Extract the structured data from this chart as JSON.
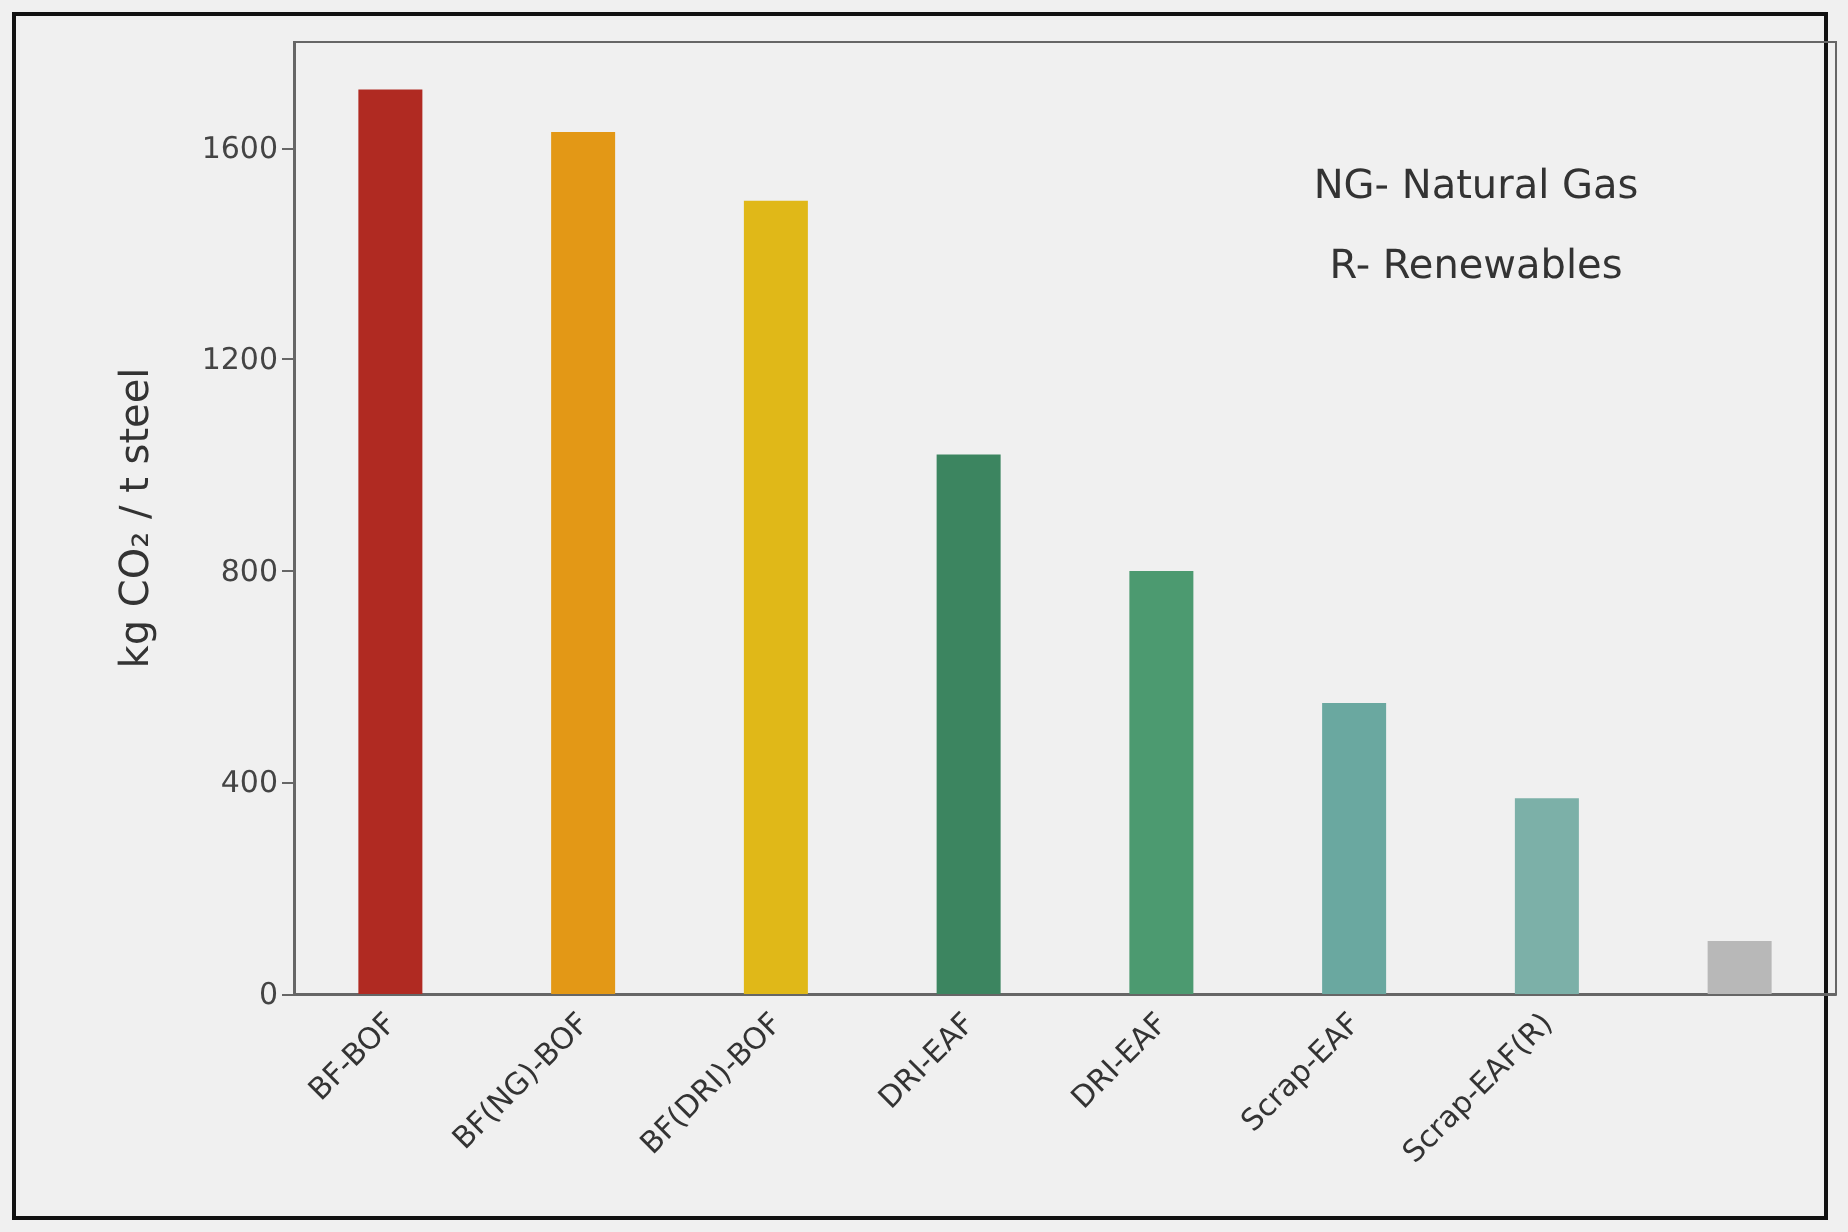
{
  "chart_data": {
    "type": "bar",
    "ylabel": "kg CO₂ / t steel",
    "categories": [
      "BF-BOF",
      "BF(NG)-BOF",
      "BF(DRI)-BOF",
      "DRI-EAF",
      "DRI-EAF",
      "Scrap-EAF",
      "Scrap-EAF(R)",
      null
    ],
    "values": [
      1710,
      1630,
      1500,
      1020,
      800,
      550,
      370,
      100
    ],
    "colors": [
      "#b02a22",
      "#e39816",
      "#e0b818",
      "#3c8560",
      "#4c9a70",
      "#6aa8a0",
      "#7cb0a8",
      "#b8b8b8"
    ],
    "ylim": [
      0,
      1800
    ],
    "yticks": [
      0,
      400,
      800,
      1200,
      1600
    ],
    "grid": false,
    "annotations": [
      "NG- Natural Gas",
      "R- Renewables"
    ]
  }
}
